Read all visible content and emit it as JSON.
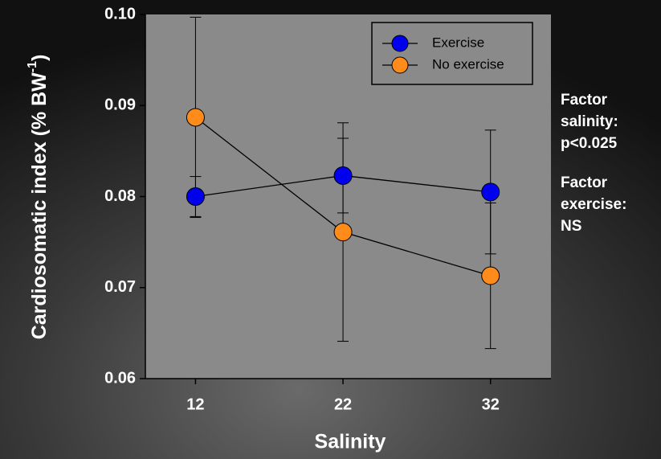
{
  "chart_data": {
    "type": "line",
    "x_label": "Salinity",
    "y_label": [
      "Cardiosomatic index (% BW",
      "-1",
      ")"
    ],
    "x": [
      12,
      22,
      32
    ],
    "xlim": [
      8.6,
      36.1
    ],
    "xticks": [
      12,
      22,
      32
    ],
    "ylim": [
      0.06,
      0.1
    ],
    "yticks": [
      0.06,
      0.07,
      0.08,
      0.09,
      {
        "value": 0.1,
        "label": "0.10"
      }
    ],
    "series": [
      {
        "name": "Exercise",
        "color": "#0000ee",
        "values": [
          0.08,
          0.0823,
          0.0805
        ],
        "errors": [
          0.0022,
          0.0041,
          0.0068
        ]
      },
      {
        "name": "No exercise",
        "color": "#ff8c1a",
        "values": [
          0.0887,
          0.0761,
          0.0713
        ],
        "errors": [
          0.011,
          0.012,
          0.008
        ]
      }
    ],
    "annotations": [
      [
        "Factor",
        "salinity:",
        "p<0.025"
      ],
      [
        "Factor",
        "exercise:",
        "NS"
      ]
    ]
  }
}
